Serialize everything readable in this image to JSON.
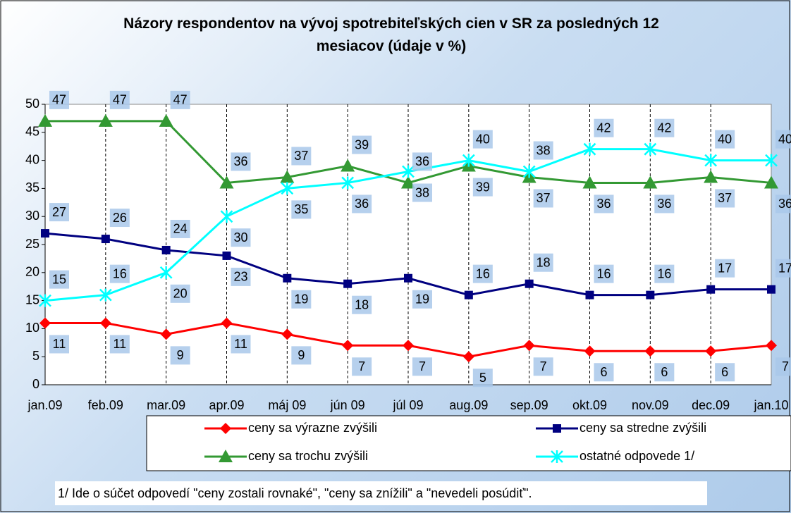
{
  "chart_data": {
    "type": "line",
    "title": "Názory respondentov na vývoj spotrebiteľských cien v SR za posledných 12 mesiacov (údaje v %)",
    "categories": [
      "jan.09",
      "feb.09",
      "mar.09",
      "apr.09",
      "máj 09",
      "jún 09",
      "júl 09",
      "aug.09",
      "sep.09",
      "okt.09",
      "nov.09",
      "dec.09",
      "jan.10"
    ],
    "series": [
      {
        "name": "ceny sa výrazne zvýšili",
        "color": "#ff0000",
        "marker": "diamond",
        "values": [
          11,
          11,
          9,
          11,
          9,
          7,
          7,
          5,
          7,
          6,
          6,
          6,
          7
        ]
      },
      {
        "name": "ceny sa stredne zvýšili",
        "color": "#000080",
        "marker": "square",
        "values": [
          27,
          26,
          24,
          23,
          19,
          18,
          19,
          16,
          18,
          16,
          16,
          17,
          17
        ]
      },
      {
        "name": "ceny sa trochu zvýšili",
        "color": "#339933",
        "marker": "triangle",
        "values": [
          47,
          47,
          47,
          36,
          37,
          39,
          36,
          39,
          37,
          36,
          36,
          37,
          36
        ]
      },
      {
        "name": "ostatné odpovede 1/",
        "color": "#00ffff",
        "marker": "x",
        "values": [
          15,
          16,
          20,
          30,
          35,
          36,
          38,
          40,
          38,
          42,
          42,
          40,
          40
        ]
      }
    ],
    "ylim": [
      0,
      50
    ],
    "yticks": [
      0,
      5,
      10,
      15,
      20,
      25,
      30,
      35,
      40,
      45,
      50
    ],
    "grid": "vertical-dashed",
    "footnote": "1/ Ide o súčet odpovedí \"ceny zostali rovnaké\", \"ceny sa znížili\" a \"nevedeli posúdiť\"."
  }
}
